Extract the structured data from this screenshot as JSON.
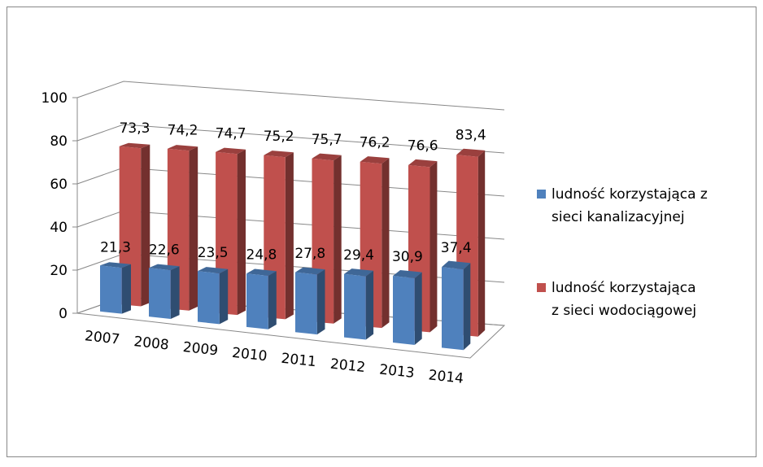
{
  "chart_data": {
    "type": "bar3d",
    "categories": [
      "2007",
      "2008",
      "2009",
      "2010",
      "2011",
      "2012",
      "2013",
      "2014"
    ],
    "series": [
      {
        "name": "ludność korzystająca z sieci kanalizacyjnej",
        "color": "#4f81bd",
        "values": [
          21.3,
          22.6,
          23.5,
          24.8,
          27.8,
          29.4,
          30.9,
          37.4
        ],
        "value_labels": [
          "21,3",
          "22,6",
          "23,5",
          "24,8",
          "27,8",
          "29,4",
          "30,9",
          "37,4"
        ]
      },
      {
        "name": "ludność korzystająca z sieci wodociągowej",
        "color": "#c0504d",
        "values": [
          73.3,
          74.2,
          74.7,
          75.2,
          75.7,
          76.2,
          76.6,
          83.4
        ],
        "value_labels": [
          "73,3",
          "74,2",
          "74,7",
          "75,2",
          "75,7",
          "76,2",
          "76,6",
          "83,4"
        ]
      }
    ],
    "ylim": [
      0,
      100
    ],
    "yticks": [
      0,
      20,
      40,
      60,
      80,
      100
    ],
    "grid": true,
    "legend": "right"
  }
}
